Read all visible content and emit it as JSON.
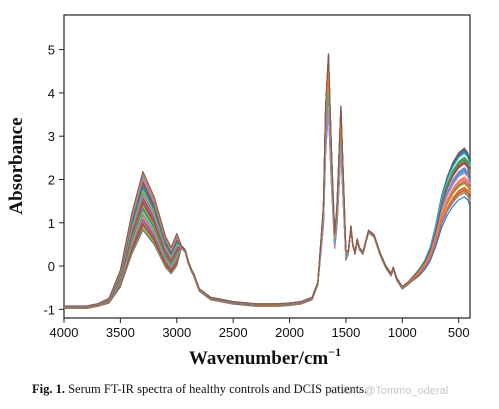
{
  "chart_data": {
    "type": "line",
    "title": "",
    "xlabel": "Wavenumber/cm",
    "xlabel_sup": "−1",
    "ylabel": "Absorbance",
    "xlim": [
      4000,
      400
    ],
    "ylim": [
      -1.2,
      5.8
    ],
    "x_reversed": true,
    "x_ticks": [
      4000,
      3500,
      3000,
      2500,
      2000,
      1500,
      1000,
      500
    ],
    "y_ticks": [
      -1,
      0,
      1,
      2,
      3,
      4,
      5
    ],
    "grid": false,
    "legend": "none",
    "series_count": 28,
    "series_colors": [
      "#1f77b4",
      "#ff7f0e",
      "#2ca02c",
      "#d62728",
      "#9467bd",
      "#8c564b",
      "#e377c2",
      "#7f7f7f",
      "#bcbd22",
      "#17becf",
      "#1f77b4",
      "#ff7f0e",
      "#2ca02c",
      "#d62728",
      "#9467bd",
      "#8c564b",
      "#e377c2",
      "#7f7f7f",
      "#bcbd22",
      "#17becf",
      "#1f77b4",
      "#2ca02c",
      "#d62728",
      "#9467bd",
      "#e377c2",
      "#17becf",
      "#ff7f0e",
      "#8c564b"
    ],
    "representative_x": [
      4000,
      3800,
      3700,
      3600,
      3500,
      3400,
      3300,
      3200,
      3100,
      3050,
      3000,
      2960,
      2925,
      2900,
      2870,
      2850,
      2800,
      2700,
      2500,
      2300,
      2100,
      2000,
      1900,
      1800,
      1750,
      1700,
      1680,
      1655,
      1630,
      1600,
      1580,
      1545,
      1520,
      1500,
      1480,
      1455,
      1440,
      1420,
      1400,
      1380,
      1350,
      1300,
      1250,
      1200,
      1150,
      1100,
      1080,
      1050,
      1000,
      950,
      900,
      850,
      800,
      750,
      700,
      650,
      600,
      550,
      500,
      450,
      420,
      400
    ],
    "representative_y": [
      -0.95,
      -0.95,
      -0.9,
      -0.8,
      -0.3,
      0.7,
      1.45,
      1.0,
      0.3,
      0.1,
      0.35,
      0.45,
      0.35,
      0.1,
      -0.1,
      -0.2,
      -0.55,
      -0.75,
      -0.85,
      -0.9,
      -0.9,
      -0.88,
      -0.85,
      -0.75,
      -0.4,
      1.5,
      4.0,
      5.3,
      3.0,
      0.8,
      1.5,
      4.0,
      2.0,
      0.4,
      0.3,
      0.9,
      0.5,
      0.3,
      0.6,
      0.4,
      0.3,
      0.8,
      0.7,
      0.3,
      0.0,
      -0.2,
      -0.05,
      -0.3,
      -0.5,
      -0.4,
      -0.25,
      -0.1,
      0.1,
      0.4,
      0.9,
      1.5,
      1.9,
      2.2,
      2.4,
      2.5,
      2.4,
      2.2
    ]
  },
  "caption": {
    "label": "Fig. 1.",
    "text": "Serum FT-IR spectra of healthy controls and DCIS patients."
  },
  "watermark": "CSDN @Tommo_oderal"
}
